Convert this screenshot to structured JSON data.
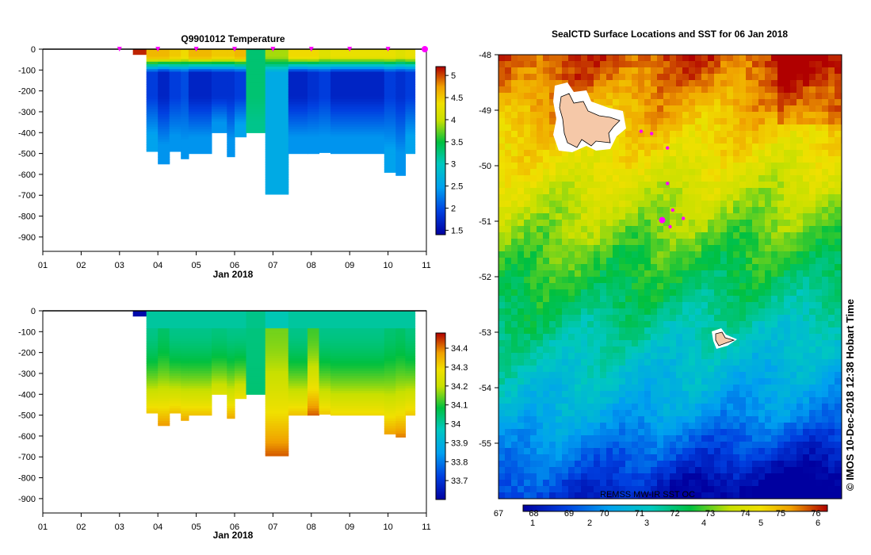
{
  "chart_data": [
    {
      "type": "heatmap",
      "title": "Q9901012  Temperature",
      "xlabel": "Jan 2018",
      "xtick_labels": [
        "01",
        "02",
        "03",
        "04",
        "05",
        "06",
        "07",
        "08",
        "09",
        "10",
        "11"
      ],
      "ytick_labels": [
        "0",
        "-100",
        "-200",
        "-300",
        "-400",
        "-500",
        "-600",
        "-700",
        "-800",
        "-900"
      ],
      "ylim": [
        -950,
        0
      ],
      "colorbar_ticks": [
        "1.5",
        "2",
        "2.5",
        "3",
        "3.5",
        "4",
        "4.5",
        "5"
      ],
      "colorbar_range": [
        1.4,
        5.2
      ],
      "profile_markers_day": [
        3.0,
        4.0,
        5.0,
        6.0,
        7.0,
        8.0,
        9.0,
        10.0,
        11.0
      ],
      "profiles": [
        {
          "day_start": 3.35,
          "day_end": 3.7,
          "max_depth": 25,
          "surface": 5.1,
          "mid": 5.1,
          "deep": 5.1
        },
        {
          "day_start": 3.7,
          "day_end": 4.0,
          "max_depth": 490,
          "surface": 4.6,
          "mid": 1.9,
          "deep": 2.5
        },
        {
          "day_start": 4.0,
          "day_end": 4.3,
          "max_depth": 550,
          "surface": 4.6,
          "mid": 1.7,
          "deep": 2.4
        },
        {
          "day_start": 4.3,
          "day_end": 4.6,
          "max_depth": 490,
          "surface": 4.5,
          "mid": 1.9,
          "deep": 2.4
        },
        {
          "day_start": 4.6,
          "day_end": 4.8,
          "max_depth": 525,
          "surface": 4.4,
          "mid": 2.0,
          "deep": 2.4
        },
        {
          "day_start": 4.8,
          "day_end": 5.4,
          "max_depth": 500,
          "surface": 4.6,
          "mid": 1.7,
          "deep": 2.4
        },
        {
          "day_start": 5.4,
          "day_end": 5.8,
          "max_depth": 400,
          "surface": 4.5,
          "mid": 1.8,
          "deep": 2.4
        },
        {
          "day_start": 5.8,
          "day_end": 6.0,
          "max_depth": 515,
          "surface": 4.5,
          "mid": 1.8,
          "deep": 2.4
        },
        {
          "day_start": 6.0,
          "day_end": 6.3,
          "max_depth": 420,
          "surface": 4.6,
          "mid": 1.9,
          "deep": 2.5
        },
        {
          "day_start": 6.3,
          "day_end": 6.8,
          "max_depth": 400,
          "surface": 3.3,
          "mid": 3.3,
          "deep": 3.2
        },
        {
          "day_start": 6.8,
          "day_end": 7.4,
          "max_depth": 695,
          "surface": 3.9,
          "mid": 2.6,
          "deep": 2.6
        },
        {
          "day_start": 7.4,
          "day_end": 7.9,
          "max_depth": 500,
          "surface": 4.4,
          "mid": 1.7,
          "deep": 2.4
        },
        {
          "day_start": 7.9,
          "day_end": 8.2,
          "max_depth": 500,
          "surface": 4.4,
          "mid": 1.8,
          "deep": 2.4
        },
        {
          "day_start": 8.2,
          "day_end": 8.5,
          "max_depth": 495,
          "surface": 4.2,
          "mid": 1.9,
          "deep": 2.4
        },
        {
          "day_start": 8.5,
          "day_end": 9.9,
          "max_depth": 500,
          "surface": 4.3,
          "mid": 1.7,
          "deep": 2.4
        },
        {
          "day_start": 9.9,
          "day_end": 10.2,
          "max_depth": 590,
          "surface": 4.3,
          "mid": 1.9,
          "deep": 2.5
        },
        {
          "day_start": 10.2,
          "day_end": 10.45,
          "max_depth": 605,
          "surface": 4.2,
          "mid": 1.8,
          "deep": 2.4
        },
        {
          "day_start": 10.45,
          "day_end": 10.7,
          "max_depth": 500,
          "surface": 4.3,
          "mid": 1.9,
          "deep": 2.5
        }
      ]
    },
    {
      "type": "heatmap",
      "title": "",
      "xlabel": "Jan 2018",
      "xtick_labels": [
        "01",
        "02",
        "03",
        "04",
        "05",
        "06",
        "07",
        "08",
        "09",
        "10",
        "11"
      ],
      "ytick_labels": [
        "0",
        "-100",
        "-200",
        "-300",
        "-400",
        "-500",
        "-600",
        "-700",
        "-800",
        "-900"
      ],
      "ylim": [
        -950,
        0
      ],
      "colorbar_ticks": [
        "33.7",
        "33.8",
        "33.9",
        "34",
        "34.1",
        "34.2",
        "34.3",
        "34.4"
      ],
      "colorbar_range": [
        33.6,
        34.48
      ],
      "profiles": [
        {
          "day_start": 3.35,
          "day_end": 3.7,
          "max_depth": 25,
          "surface": 33.62,
          "mid": 33.62,
          "deep": 33.62
        },
        {
          "day_start": 3.7,
          "day_end": 4.0,
          "max_depth": 490,
          "surface": 34.0,
          "mid": 34.02,
          "deep": 34.32
        },
        {
          "day_start": 4.0,
          "day_end": 4.3,
          "max_depth": 550,
          "surface": 34.0,
          "mid": 34.05,
          "deep": 34.38
        },
        {
          "day_start": 4.3,
          "day_end": 4.6,
          "max_depth": 490,
          "surface": 34.0,
          "mid": 34.02,
          "deep": 34.33
        },
        {
          "day_start": 4.6,
          "day_end": 4.8,
          "max_depth": 525,
          "surface": 34.0,
          "mid": 34.02,
          "deep": 34.36
        },
        {
          "day_start": 4.8,
          "day_end": 5.4,
          "max_depth": 500,
          "surface": 34.0,
          "mid": 34.02,
          "deep": 34.33
        },
        {
          "day_start": 5.4,
          "day_end": 5.8,
          "max_depth": 400,
          "surface": 34.0,
          "mid": 34.03,
          "deep": 34.25
        },
        {
          "day_start": 5.8,
          "day_end": 6.0,
          "max_depth": 515,
          "surface": 34.0,
          "mid": 34.02,
          "deep": 34.36
        },
        {
          "day_start": 6.0,
          "day_end": 6.3,
          "max_depth": 420,
          "surface": 34.0,
          "mid": 34.02,
          "deep": 34.28
        },
        {
          "day_start": 6.3,
          "day_end": 6.8,
          "max_depth": 400,
          "surface": 34.02,
          "mid": 34.03,
          "deep": 34.04
        },
        {
          "day_start": 6.8,
          "day_end": 7.4,
          "max_depth": 695,
          "surface": 33.98,
          "mid": 34.15,
          "deep": 34.42
        },
        {
          "day_start": 7.4,
          "day_end": 7.9,
          "max_depth": 500,
          "surface": 34.0,
          "mid": 34.02,
          "deep": 34.33
        },
        {
          "day_start": 7.9,
          "day_end": 8.2,
          "max_depth": 500,
          "surface": 34.0,
          "mid": 34.12,
          "deep": 34.42
        },
        {
          "day_start": 8.2,
          "day_end": 8.5,
          "max_depth": 495,
          "surface": 34.0,
          "mid": 34.02,
          "deep": 34.32
        },
        {
          "day_start": 8.5,
          "day_end": 9.9,
          "max_depth": 500,
          "surface": 34.0,
          "mid": 34.02,
          "deep": 34.3
        },
        {
          "day_start": 9.9,
          "day_end": 10.2,
          "max_depth": 590,
          "surface": 34.0,
          "mid": 34.04,
          "deep": 34.37
        },
        {
          "day_start": 10.2,
          "day_end": 10.45,
          "max_depth": 605,
          "surface": 34.0,
          "mid": 34.05,
          "deep": 34.4
        },
        {
          "day_start": 10.45,
          "day_end": 10.7,
          "max_depth": 500,
          "surface": 34.0,
          "mid": 34.03,
          "deep": 34.32
        }
      ]
    },
    {
      "type": "heatmap",
      "title": "SealCTD Surface Locations and SST for 06 Jan 2018",
      "ytick_labels": [
        "-48",
        "-49",
        "-50",
        "-51",
        "-52",
        "-53",
        "-54",
        "-55"
      ],
      "ylim": [
        -56,
        -48
      ],
      "colorbar_f_labels": [
        "67",
        "68",
        "69",
        "70",
        "71",
        "72",
        "73",
        "74",
        "75",
        "76"
      ],
      "colorbar_c_labels": [
        "1",
        "2",
        "3",
        "4",
        "5",
        "6"
      ],
      "sst_source_label": "REMSS MW-IR SST OC",
      "side_label": "© IMOS 10-Dec-2018 12:38 Hobart Time",
      "seal_positions": [
        {
          "lon": 71.2,
          "lat": -49.38
        },
        {
          "lon": 71.4,
          "lat": -49.42
        },
        {
          "lon": 71.7,
          "lat": -49.68
        },
        {
          "lon": 71.7,
          "lat": -50.32
        },
        {
          "lon": 71.8,
          "lat": -50.8
        },
        {
          "lon": 72.0,
          "lat": -50.95
        },
        {
          "lon": 71.75,
          "lat": -51.1
        }
      ],
      "latest_position": {
        "lon": 71.6,
        "lat": -50.98
      }
    }
  ]
}
